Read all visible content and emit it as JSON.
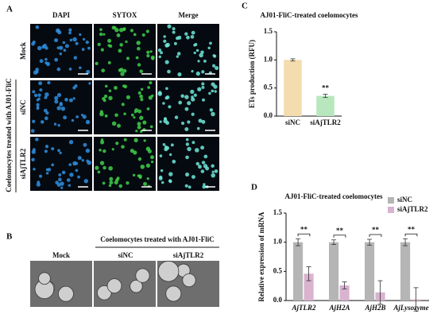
{
  "panel_a": {
    "letter": "A",
    "columns": [
      "DAPI",
      "SYTOX",
      "Merge"
    ],
    "rows": [
      "Mock",
      "siNC",
      "siAjTLR2"
    ],
    "group_label": "Coelomocytes treated with AJ01-FliC"
  },
  "panel_b": {
    "letter": "B",
    "mock_label": "Mock",
    "group_label": "Coelomocytes treated with AJ01-FliC",
    "columns": [
      "siNC",
      "siAjTLR2"
    ]
  },
  "chart_data": [
    {
      "type": "bar",
      "panel": "C",
      "title": "AJ01-FliC-treated coelomocytes",
      "y_label": "ETs production (RFU)",
      "categories": [
        "siNC",
        "siAjTLR2"
      ],
      "values": [
        1.0,
        0.36
      ],
      "errors": [
        0.02,
        0.03
      ],
      "colors": [
        "#f3dcae",
        "#b9e7bd"
      ],
      "significance": [
        null,
        "**"
      ],
      "ylim": [
        0,
        1.5
      ],
      "yticks": [
        {
          "value": 0,
          "label": "0.0"
        },
        {
          "value": 0.5,
          "label": "0.5"
        },
        {
          "value": 1,
          "label": "1.0"
        },
        {
          "value": 1.5,
          "label": "1.5"
        }
      ]
    },
    {
      "type": "grouped_bar",
      "panel": "D",
      "title": "AJ01-FliC-treated coelomocytes",
      "y_label": "Relative expression of mRNA",
      "categories": [
        "AjTLR2",
        "AjH2A",
        "AjH2B",
        "AjLysozyme"
      ],
      "series": [
        {
          "name": "siNC",
          "color": "#b5b5b5",
          "values": [
            1.0,
            1.0,
            1.0,
            1.0
          ],
          "errors": [
            0.06,
            0.04,
            0.05,
            0.06
          ]
        },
        {
          "name": "siAjTLR2",
          "color": "#d9b3cf",
          "values": [
            0.46,
            0.26,
            0.14,
            0.02
          ],
          "errors": [
            0.12,
            0.06,
            0.2,
            0.2
          ]
        }
      ],
      "significance": [
        "**",
        "**",
        "**",
        "**"
      ],
      "legend": "top-right",
      "ylim": [
        0,
        1.5
      ],
      "yticks": [
        {
          "value": 0,
          "label": "0.0"
        },
        {
          "value": 0.5,
          "label": "0.5"
        },
        {
          "value": 1,
          "label": "1.0"
        },
        {
          "value": 1.5,
          "label": "1.5"
        }
      ]
    }
  ]
}
